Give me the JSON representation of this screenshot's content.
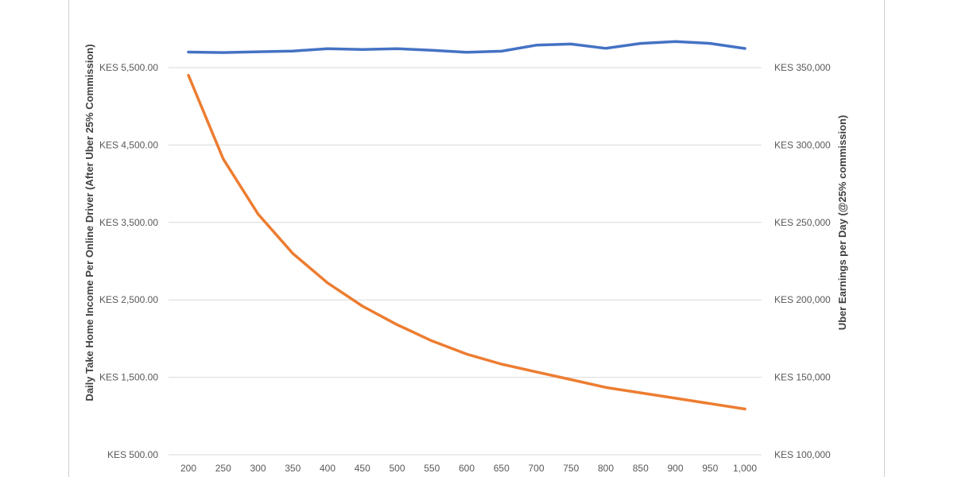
{
  "chart_data": {
    "type": "line",
    "x": [
      200,
      250,
      300,
      350,
      400,
      450,
      500,
      550,
      600,
      650,
      700,
      750,
      800,
      850,
      900,
      950,
      1000
    ],
    "x_tick_labels": [
      "200",
      "250",
      "300",
      "350",
      "400",
      "450",
      "500",
      "550",
      "600",
      "650",
      "700",
      "750",
      "800",
      "850",
      "900",
      "950",
      "1,000"
    ],
    "xlabel": "",
    "y_left": {
      "label": "Daily Take Home Income Per Online Driver (After Uber 25% Commission)",
      "lim": [
        500,
        5500
      ],
      "ticks": [
        500,
        1500,
        2500,
        3500,
        4500,
        5500
      ],
      "tick_labels": [
        "KES 500.00",
        "KES 1,500.00",
        "KES 2,500.00",
        "KES 3,500.00",
        "KES 4,500.00",
        "KES 5,500.00"
      ]
    },
    "y_right": {
      "label": "Uber Earnings per Day (@25% commission)",
      "lim": [
        100000,
        350000
      ],
      "ticks": [
        100000,
        150000,
        200000,
        250000,
        300000,
        350000
      ],
      "tick_labels": [
        "KES 100,000",
        "KES 150,000",
        "KES 200,000",
        "KES 250,000",
        "KES 300,000",
        "KES 350,000"
      ]
    },
    "grid": true,
    "series": [
      {
        "axis": "right",
        "color": "#4472C4",
        "values": [
          360000,
          359700,
          360200,
          360700,
          362200,
          361700,
          362200,
          361200,
          359900,
          360600,
          364500,
          365200,
          362400,
          365600,
          366800,
          365600,
          362300
        ]
      },
      {
        "axis": "left",
        "color": "#ED7D31",
        "values": [
          5400,
          4320,
          3610,
          3100,
          2720,
          2420,
          2180,
          1970,
          1800,
          1670,
          1570,
          1470,
          1370,
          1300,
          1230,
          1160,
          1090
        ]
      }
    ]
  }
}
